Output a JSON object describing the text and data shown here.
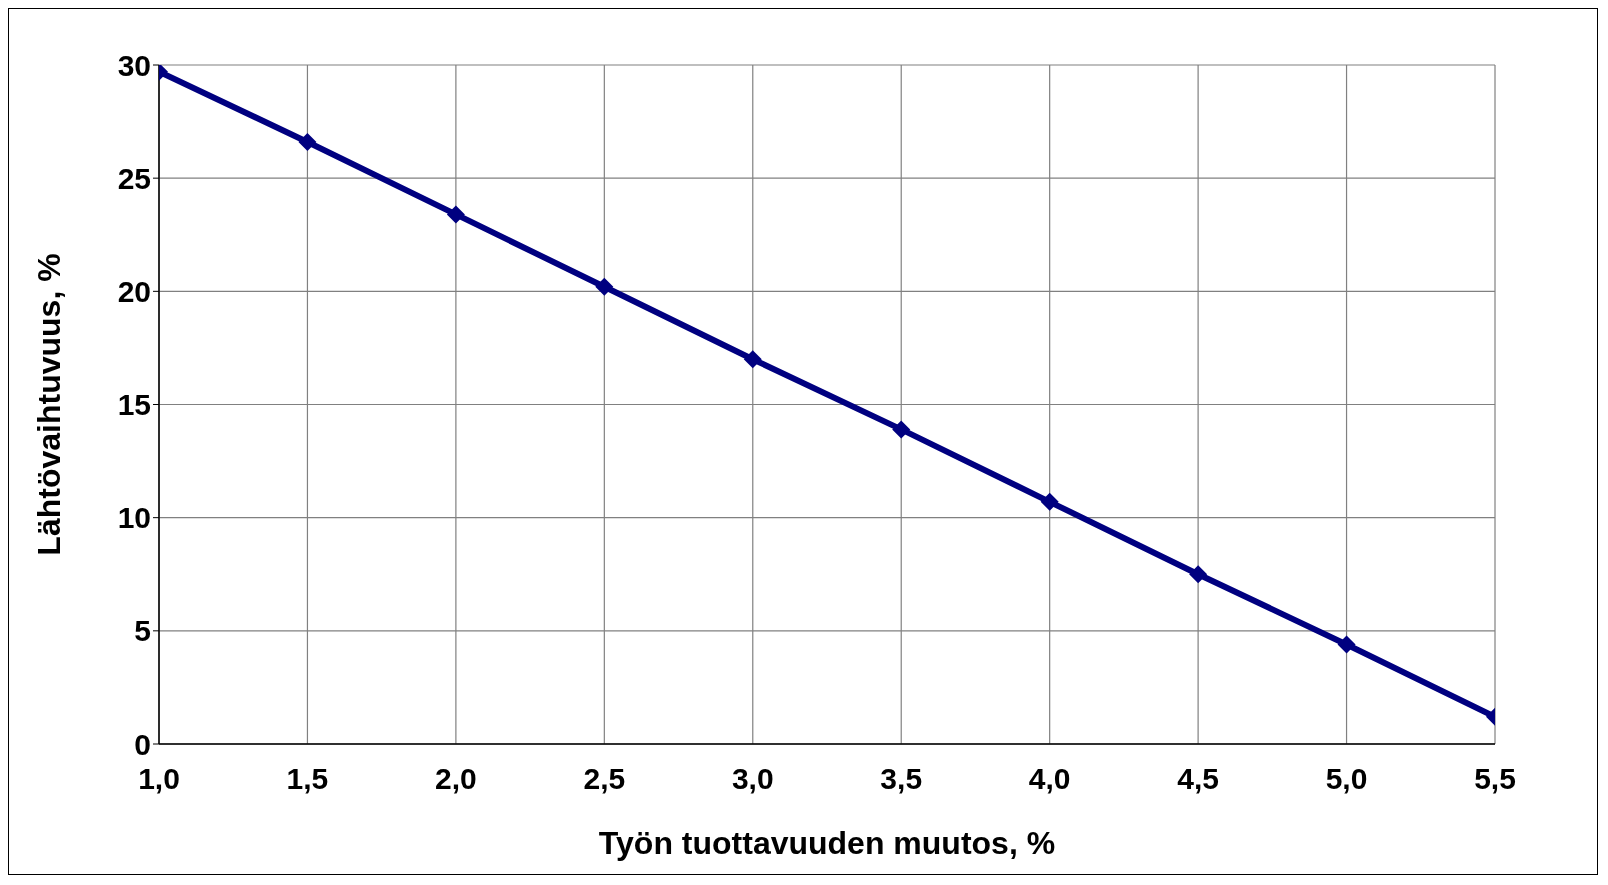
{
  "chart_data": {
    "type": "line",
    "xlabel": "Työn tuottavuuden muutos, %",
    "ylabel": "Lähtövaihtuvuus, %",
    "x": [
      1,
      1.5,
      2,
      2.5,
      3,
      3.5,
      4,
      4.5,
      5,
      5.5
    ],
    "series": [
      {
        "color": "#000080",
        "values": [
          29.7,
          26.6,
          23.4,
          20.2,
          17.0,
          13.9,
          10.7,
          7.5,
          4.4,
          1.2
        ]
      }
    ],
    "xlim": [
      1,
      5.5
    ],
    "xticks": [
      {
        "value": 1,
        "label": "1,0"
      },
      {
        "value": 1.5,
        "label": "1,5"
      },
      {
        "value": 2,
        "label": "2,0"
      },
      {
        "value": 2.5,
        "label": "2,5"
      },
      {
        "value": 3,
        "label": "3,0"
      },
      {
        "value": 3.5,
        "label": "3,5"
      },
      {
        "value": 4,
        "label": "4,0"
      },
      {
        "value": 4.5,
        "label": "4,5"
      },
      {
        "value": 5,
        "label": "5,0"
      },
      {
        "value": 5.5,
        "label": "5,5"
      }
    ],
    "ylim": [
      0,
      30
    ],
    "yticks": [
      0,
      5,
      10,
      15,
      20,
      25,
      30
    ],
    "grid": true,
    "legend": false,
    "marker": "diamond",
    "line_style": "solid"
  }
}
